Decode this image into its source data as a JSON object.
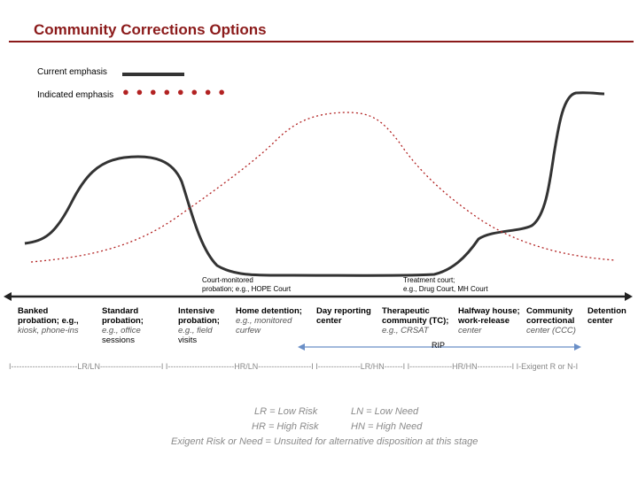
{
  "title": "Community Corrections Options",
  "colors": {
    "title": "#8b1a1a",
    "rule": "#8b1a1a",
    "current": "#333333",
    "indicated": "#b22222",
    "rip_arrow": "#6a8fc7"
  },
  "legend": {
    "current": "Current emphasis",
    "indicated": "Indicated emphasis",
    "indicated_dots": "● ● ● ● ● ● ● ●"
  },
  "notes": {
    "court_monitored": [
      "Court-monitored",
      "probation; e.g., HOPE Court"
    ],
    "treatment_court": [
      "Treatment court;",
      "e.g., Drug Court, MH Court"
    ]
  },
  "categories": [
    {
      "name": [
        "Banked",
        "probation; e.g.,"
      ],
      "example": [
        "kiosk, phone-ins"
      ]
    },
    {
      "name": [
        "Standard",
        "probation;"
      ],
      "example": [
        "e.g., office",
        "sessions"
      ]
    },
    {
      "name": [
        "Intensive",
        "probation;"
      ],
      "example": [
        "e.g., field",
        "visits"
      ]
    },
    {
      "name": [
        "Home detention;"
      ],
      "example": [
        "e.g., monitored",
        "curfew"
      ]
    },
    {
      "name": [
        "Day reporting",
        "center"
      ],
      "example": []
    },
    {
      "name": [
        "Therapeutic",
        "community (TC);"
      ],
      "example": [
        "e.g., CRSAT"
      ]
    },
    {
      "name": [
        "Halfway house;",
        "work-release"
      ],
      "example": [
        "center"
      ]
    },
    {
      "name": [
        "Community",
        "correctional"
      ],
      "example": [
        "center (CCC)"
      ]
    },
    {
      "name": [
        "Detention",
        "center"
      ],
      "example": []
    }
  ],
  "rip_label": "RIP",
  "tier_line": "I-------------------------LR/LN-----------------------I I-------------------------HR/LN--------------------I I----------------LR/HN-------I I----------------HR/HN-------------I I-Exigent R or N-I",
  "key": {
    "lr": "LR = Low Risk",
    "ln": "LN = Low Need",
    "hr": "HR = High Risk",
    "hn": "HN = High Need",
    "exigent": "Exigent Risk or Need = Unsuited for alternative disposition at this stage"
  }
}
